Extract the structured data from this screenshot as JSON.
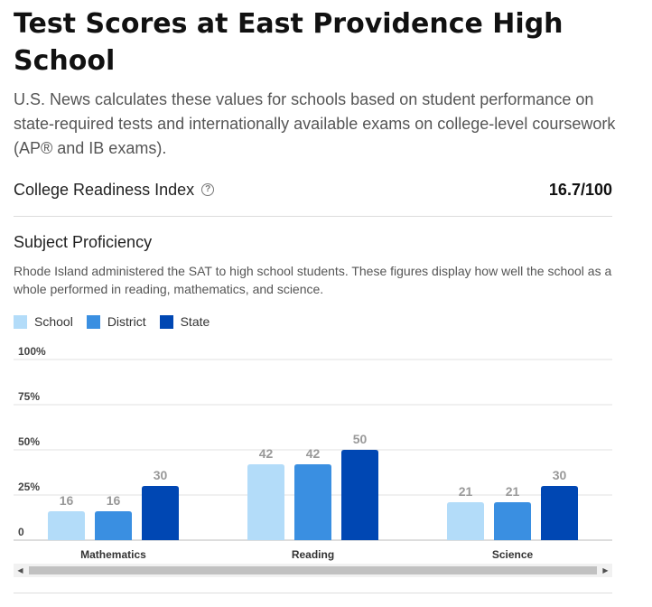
{
  "header": {
    "title": "Test Scores at East Providence High School",
    "description": "U.S. News calculates these values for schools based on student performance on state-required tests and internationally available exams on college-level coursework (AP® and IB exams)."
  },
  "college_readiness": {
    "label": "College Readiness Index",
    "help_icon": "question-circle-icon",
    "help_glyph": "?",
    "value": "16.7/100"
  },
  "subject_proficiency": {
    "title": "Subject Proficiency",
    "description": "Rhode Island administered the SAT to high school students. These figures display how well the school as a whole performed in reading, mathematics, and science."
  },
  "legend": [
    {
      "label": "School",
      "color": "#b3dcf9"
    },
    {
      "label": "District",
      "color": "#3a8fe1"
    },
    {
      "label": "State",
      "color": "#0047b3"
    }
  ],
  "chart_data": {
    "type": "bar",
    "categories": [
      "Mathematics",
      "Reading",
      "Science"
    ],
    "series": [
      {
        "name": "School",
        "values": [
          16,
          42,
          21
        ],
        "color": "#b3dcf9"
      },
      {
        "name": "District",
        "values": [
          16,
          42,
          21
        ],
        "color": "#3a8fe1"
      },
      {
        "name": "State",
        "values": [
          30,
          50,
          30
        ],
        "color": "#0047b3"
      }
    ],
    "yticks": [
      "0",
      "25%",
      "50%",
      "75%",
      "100%"
    ],
    "ylim": [
      0,
      100
    ],
    "grid": true,
    "legend_position": "top-left"
  },
  "scrollbar": {
    "left_glyph": "◀",
    "right_glyph": "▶"
  }
}
